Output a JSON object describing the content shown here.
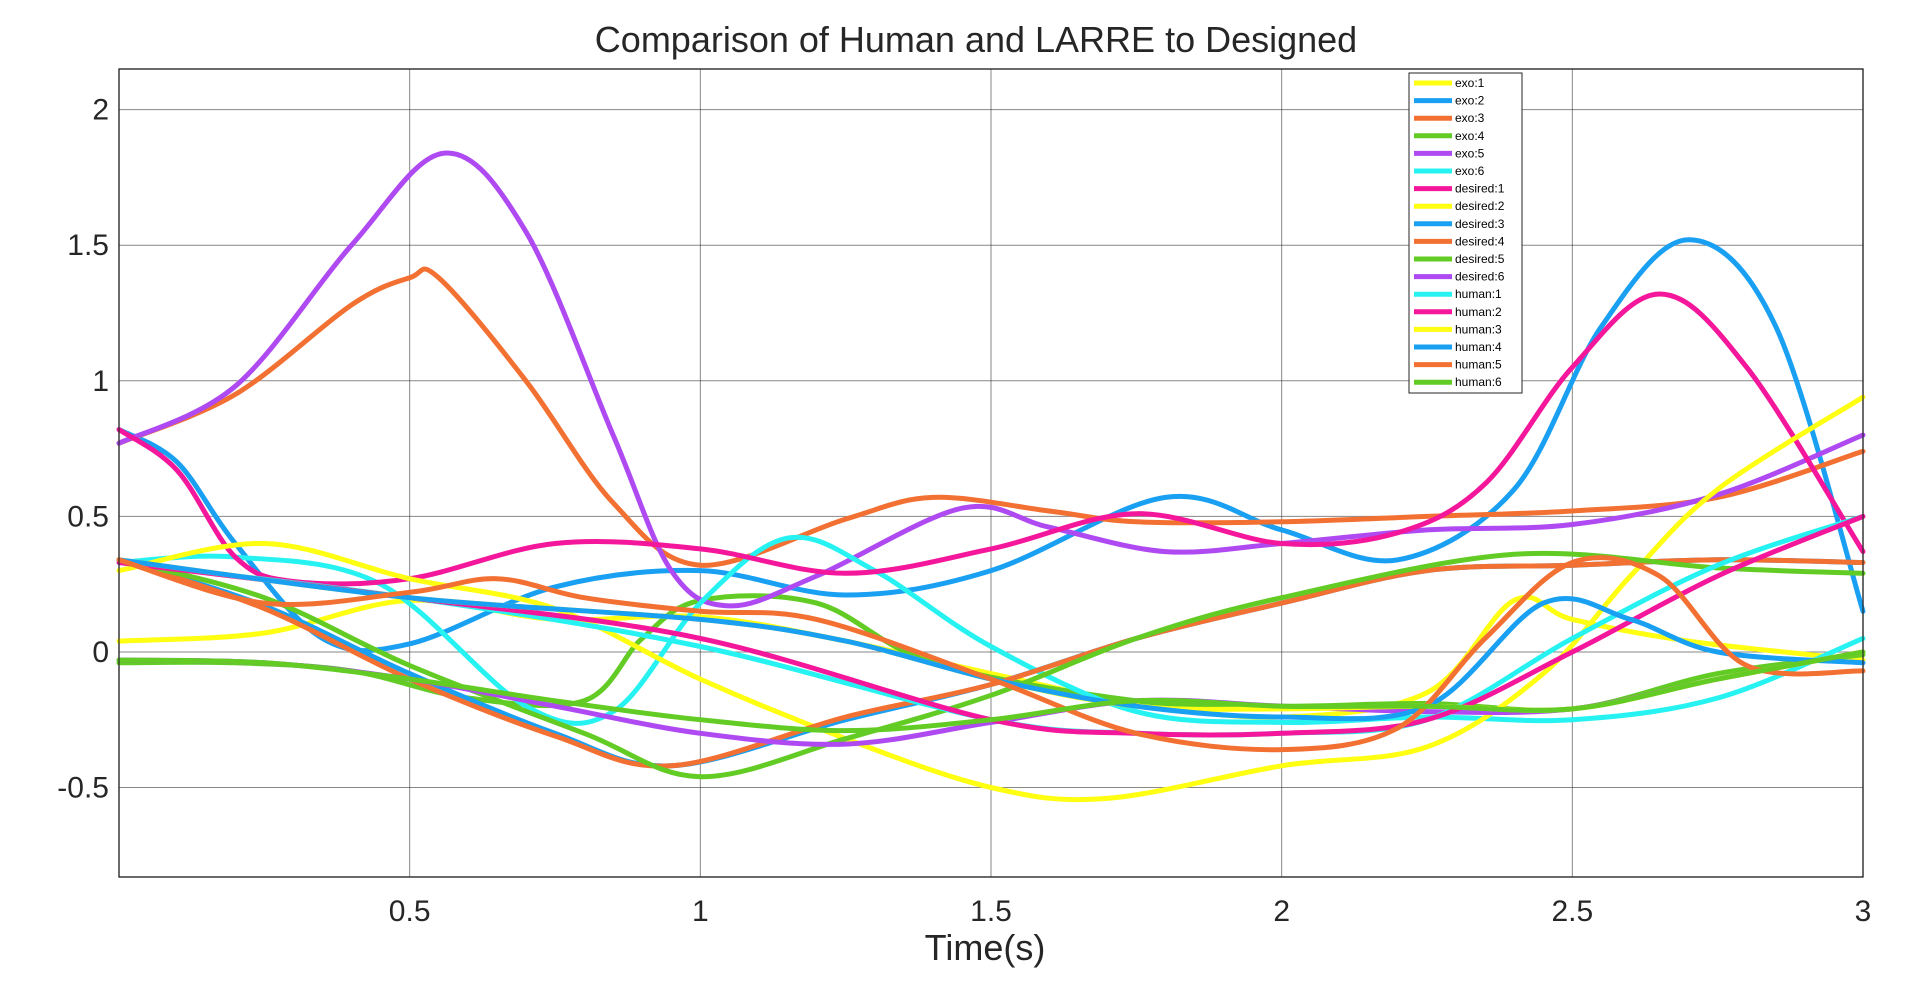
{
  "chart_data": {
    "type": "line",
    "title": "Comparison of Human and LARRE to Designed",
    "xlabel": "Time(s)",
    "ylabel": "",
    "xlim": [
      0,
      3
    ],
    "ylim": [
      -0.83,
      2.15
    ],
    "xticks": [
      0.5,
      1,
      1.5,
      2,
      2.5,
      3
    ],
    "yticks": [
      -0.5,
      0,
      0.5,
      1,
      1.5,
      2
    ],
    "xtick_labels": [
      "0.5",
      "1",
      "1.5",
      "2",
      "2.5",
      "3"
    ],
    "ytick_labels": [
      "-0.5",
      "0",
      "0.5",
      "1",
      "1.5",
      "2"
    ],
    "grid": true,
    "legend_position": "top-right",
    "series": [
      {
        "name": "exo:1",
        "color": "#FFFF11",
        "x": [
          0,
          0.25,
          0.5,
          0.75,
          1,
          1.25,
          1.5,
          1.75,
          2,
          2.25,
          2.4,
          2.5,
          2.7,
          3
        ],
        "y": [
          0.04,
          0.07,
          0.19,
          0.12,
          0.13,
          0.04,
          -0.08,
          -0.19,
          -0.24,
          -0.15,
          0.19,
          0.12,
          0.04,
          -0.03
        ]
      },
      {
        "name": "exo:2",
        "color": "#1AA0F2",
        "x": [
          0,
          0.1,
          0.2,
          0.35,
          0.5,
          0.75,
          1,
          1.25,
          1.5,
          1.8,
          2,
          2.2,
          2.4,
          2.55,
          2.7,
          2.85,
          3
        ],
        "y": [
          0.82,
          0.7,
          0.4,
          0.05,
          0.03,
          0.24,
          0.3,
          0.21,
          0.3,
          0.57,
          0.45,
          0.34,
          0.6,
          1.2,
          1.52,
          1.2,
          0.15
        ]
      },
      {
        "name": "exo:3",
        "color": "#F37033",
        "x": [
          0,
          0.2,
          0.4,
          0.5,
          0.55,
          0.7,
          0.85,
          1,
          1.25,
          1.4,
          1.6,
          1.75,
          2,
          2.25,
          2.5,
          2.75,
          3
        ],
        "y": [
          0.77,
          0.95,
          1.28,
          1.38,
          1.38,
          1.0,
          0.55,
          0.32,
          0.49,
          0.57,
          0.52,
          0.48,
          0.48,
          0.5,
          0.52,
          0.57,
          0.74
        ]
      },
      {
        "name": "exo:4",
        "color": "#62CC25",
        "x": [
          0,
          0.2,
          0.4,
          0.6,
          0.8,
          0.9,
          1,
          1.2,
          1.4,
          1.75,
          2,
          2.25,
          2.5,
          2.75,
          3
        ],
        "y": [
          -0.04,
          -0.04,
          -0.07,
          -0.17,
          -0.18,
          0.05,
          0.19,
          0.18,
          -0.04,
          -0.18,
          -0.2,
          -0.19,
          -0.21,
          -0.08,
          -0.01
        ]
      },
      {
        "name": "exo:5",
        "color": "#AF4AF2",
        "x": [
          0,
          0.2,
          0.4,
          0.56,
          0.7,
          0.85,
          0.95,
          1.05,
          1.2,
          1.45,
          1.6,
          1.8,
          2,
          2.25,
          2.5,
          2.75,
          3
        ],
        "y": [
          0.77,
          0.98,
          1.5,
          1.84,
          1.55,
          0.8,
          0.3,
          0.17,
          0.28,
          0.53,
          0.46,
          0.37,
          0.4,
          0.45,
          0.47,
          0.58,
          0.8
        ]
      },
      {
        "name": "exo:6",
        "color": "#27F2F2",
        "x": [
          0,
          0.2,
          0.45,
          0.7,
          0.85,
          1,
          1.15,
          1.3,
          1.5,
          1.75,
          2,
          2.25,
          2.5,
          2.75,
          3
        ],
        "y": [
          0.33,
          0.35,
          0.25,
          -0.2,
          -0.22,
          0.18,
          0.42,
          0.3,
          0.02,
          -0.22,
          -0.26,
          -0.24,
          -0.25,
          -0.17,
          0.05
        ]
      },
      {
        "name": "desired:1",
        "color": "#F4179B",
        "x": [
          0,
          0.1,
          0.2,
          0.3,
          0.5,
          0.75,
          1,
          1.25,
          1.5,
          1.75,
          2,
          2.2,
          2.35,
          2.5,
          2.65,
          2.8,
          3
        ],
        "y": [
          0.82,
          0.67,
          0.35,
          0.26,
          0.27,
          0.4,
          0.38,
          0.29,
          0.38,
          0.51,
          0.4,
          0.44,
          0.62,
          1.05,
          1.32,
          1.05,
          0.37
        ]
      },
      {
        "name": "desired:2",
        "color": "#FFFF11",
        "x": [
          0,
          0.25,
          0.5,
          0.75,
          1,
          1.25,
          1.5,
          1.7,
          2,
          2.25,
          2.45,
          2.6,
          2.75,
          3
        ],
        "y": [
          0.3,
          0.4,
          0.27,
          0.16,
          -0.1,
          -0.32,
          -0.5,
          -0.54,
          -0.42,
          -0.35,
          -0.08,
          0.28,
          0.6,
          0.94
        ]
      },
      {
        "name": "desired:3",
        "color": "#1AA0F2",
        "x": [
          0,
          0.25,
          0.5,
          0.75,
          0.95,
          1.25,
          1.5,
          1.75,
          2,
          2.25,
          2.5,
          2.75,
          3
        ],
        "y": [
          0.34,
          0.17,
          -0.08,
          -0.3,
          -0.42,
          -0.25,
          -0.12,
          0.05,
          0.18,
          0.3,
          0.32,
          0.34,
          0.33
        ]
      },
      {
        "name": "desired:4",
        "color": "#F37033",
        "x": [
          0,
          0.25,
          0.5,
          0.75,
          0.95,
          1.25,
          1.5,
          1.75,
          2,
          2.25,
          2.5,
          2.75,
          3
        ],
        "y": [
          0.34,
          0.16,
          -0.1,
          -0.31,
          -0.42,
          -0.24,
          -0.12,
          0.05,
          0.18,
          0.3,
          0.32,
          0.34,
          0.33
        ]
      },
      {
        "name": "desired:5",
        "color": "#62CC25",
        "x": [
          0,
          0.25,
          0.5,
          0.8,
          1,
          1.25,
          1.5,
          1.75,
          2,
          2.4,
          2.75,
          3
        ],
        "y": [
          0.34,
          0.2,
          -0.05,
          -0.3,
          -0.46,
          -0.32,
          -0.16,
          0.05,
          0.2,
          0.36,
          0.31,
          0.29
        ]
      },
      {
        "name": "desired:6",
        "color": "#AF4AF2",
        "x": [
          0,
          0.25,
          0.5,
          0.75,
          1,
          1.25,
          1.5,
          1.75,
          2,
          2.25,
          2.5,
          2.75,
          3
        ],
        "y": [
          -0.03,
          -0.04,
          -0.1,
          -0.2,
          -0.3,
          -0.34,
          -0.26,
          -0.18,
          -0.2,
          -0.22,
          -0.21,
          -0.1,
          0.0
        ]
      },
      {
        "name": "human:1",
        "color": "#27F2F2",
        "x": [
          0,
          0.5,
          1,
          1.5,
          1.75,
          2,
          2.25,
          2.5,
          2.75,
          3
        ],
        "y": [
          0.33,
          0.2,
          0.02,
          -0.25,
          -0.3,
          -0.3,
          -0.25,
          0.05,
          0.32,
          0.5
        ]
      },
      {
        "name": "human:2",
        "color": "#F4179B",
        "x": [
          0,
          0.5,
          1,
          1.5,
          1.75,
          2,
          2.25,
          2.5,
          2.75,
          3
        ],
        "y": [
          0.33,
          0.2,
          0.05,
          -0.25,
          -0.3,
          -0.3,
          -0.25,
          0.0,
          0.28,
          0.5
        ]
      },
      {
        "name": "human:3",
        "color": "#FFFF11",
        "x": [
          0,
          0.5,
          1,
          1.25,
          1.5,
          1.75,
          2,
          2.25,
          2.5,
          2.75,
          3
        ],
        "y": [
          0.34,
          0.2,
          0.12,
          0.04,
          -0.1,
          -0.2,
          -0.21,
          -0.2,
          -0.21,
          -0.1,
          0.0
        ]
      },
      {
        "name": "human:4",
        "color": "#1AA0F2",
        "x": [
          0,
          0.5,
          1,
          1.25,
          1.5,
          1.75,
          2,
          2.25,
          2.45,
          2.6,
          2.75,
          3
        ],
        "y": [
          0.34,
          0.2,
          0.12,
          0.04,
          -0.1,
          -0.2,
          -0.24,
          -0.2,
          0.18,
          0.12,
          0.0,
          -0.04
        ]
      },
      {
        "name": "human:5",
        "color": "#F37033",
        "x": [
          0,
          0.25,
          0.5,
          0.65,
          0.8,
          1,
          1.2,
          1.5,
          1.75,
          2,
          2.2,
          2.35,
          2.5,
          2.65,
          2.8,
          3
        ],
        "y": [
          0.34,
          0.18,
          0.22,
          0.27,
          0.2,
          0.15,
          0.12,
          -0.1,
          -0.3,
          -0.36,
          -0.28,
          0.05,
          0.33,
          0.28,
          -0.05,
          -0.07
        ]
      },
      {
        "name": "human:6",
        "color": "#62CC25",
        "x": [
          0,
          0.25,
          0.5,
          0.75,
          1,
          1.25,
          1.5,
          1.75,
          2,
          2.25,
          2.5,
          2.75,
          3
        ],
        "y": [
          -0.03,
          -0.04,
          -0.1,
          -0.18,
          -0.25,
          -0.29,
          -0.25,
          -0.18,
          -0.2,
          -0.2,
          -0.21,
          -0.1,
          0.0
        ]
      }
    ]
  }
}
